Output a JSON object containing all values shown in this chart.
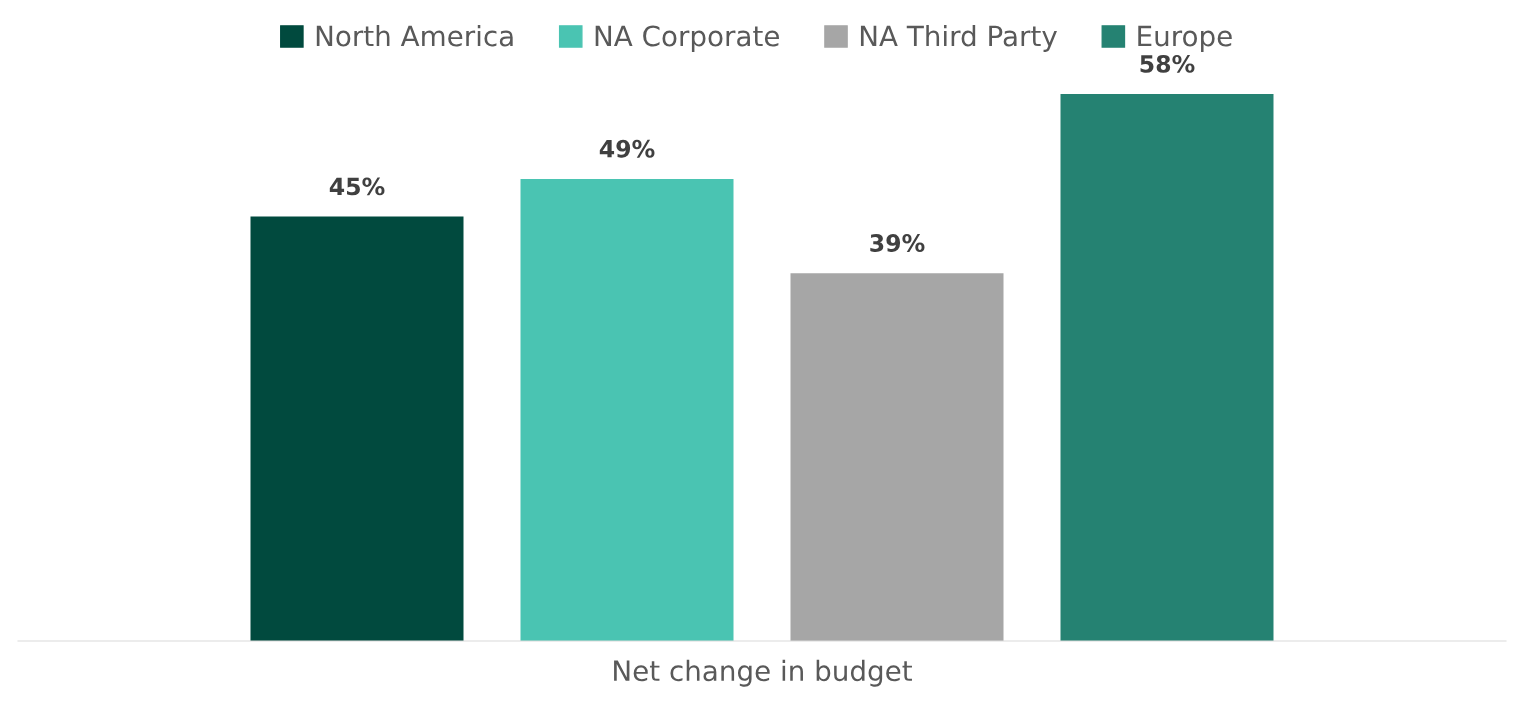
{
  "chart_data": {
    "type": "bar",
    "xlabel": "Net change in budget",
    "categories": [
      null
    ],
    "series": [
      {
        "name": "North America",
        "color": "#014a3e",
        "values": [
          45
        ],
        "value_labels": [
          "45%"
        ]
      },
      {
        "name": "NA Corporate",
        "color": "#4ac4b2",
        "values": [
          49
        ],
        "value_labels": [
          "49%"
        ]
      },
      {
        "name": "NA Third Party",
        "color": "#a6a6a6",
        "values": [
          39
        ],
        "value_labels": [
          "39%"
        ]
      },
      {
        "name": "Europe",
        "color": "#258272",
        "values": [
          58
        ],
        "value_labels": [
          "58%"
        ]
      }
    ],
    "legend": "top",
    "grid": false
  }
}
